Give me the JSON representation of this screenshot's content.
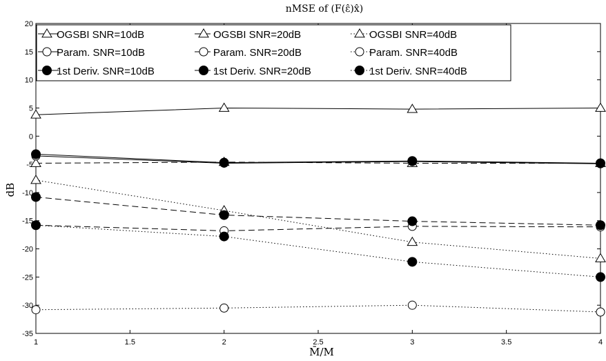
{
  "chart_data": {
    "type": "line",
    "title": "nMSE of (F(ε̂)x̂)",
    "xlabel": "M̄/M",
    "ylabel": "dB",
    "x": [
      1,
      2,
      3,
      4
    ],
    "xlim": [
      1,
      4
    ],
    "ylim": [
      -35,
      20
    ],
    "xticks": [
      "1",
      "1.5",
      "2",
      "2.5",
      "3",
      "3.5",
      "4"
    ],
    "yticks": [
      "20",
      "15",
      "10",
      "5",
      "0",
      "-5",
      "-10",
      "-15",
      "-20",
      "-25",
      "-30",
      "-35"
    ],
    "grid": false,
    "legend_position": "top-left",
    "series": [
      {
        "name": "OGSBI SNR=10dB",
        "marker": "triangle",
        "line": "solid",
        "values": [
          3.8,
          5.0,
          4.8,
          5.0
        ]
      },
      {
        "name": "OGSBI SNR=20dB",
        "marker": "triangle",
        "line": "dashed",
        "values": [
          -4.8,
          -4.6,
          -4.8,
          -4.8
        ]
      },
      {
        "name": "OGSBI SNR=40dB",
        "marker": "triangle",
        "line": "dotted",
        "values": [
          -7.8,
          -13.2,
          -18.8,
          -21.7
        ]
      },
      {
        "name": "Param. SNR=10dB",
        "marker": "circle-open",
        "line": "solid",
        "values": [
          -3.5,
          -4.8,
          -4.5,
          -4.9
        ]
      },
      {
        "name": "Param. SNR=20dB",
        "marker": "circle-open",
        "line": "dashed",
        "values": [
          -15.8,
          -16.8,
          -16.0,
          -16.1
        ]
      },
      {
        "name": "Param. SNR=40dB",
        "marker": "circle-open",
        "line": "dotted",
        "values": [
          -30.8,
          -30.5,
          -30.0,
          -31.2
        ]
      },
      {
        "name": "1st Deriv. SNR=10dB",
        "marker": "circle-filled",
        "line": "solid",
        "values": [
          -3.2,
          -4.7,
          -4.4,
          -4.8
        ]
      },
      {
        "name": "1st Deriv. SNR=20dB",
        "marker": "circle-filled",
        "line": "dashed",
        "values": [
          -10.8,
          -14.0,
          -15.1,
          -15.8
        ]
      },
      {
        "name": "1st Deriv. SNR=40dB",
        "marker": "circle-filled",
        "line": "dotted",
        "values": [
          -15.8,
          -17.8,
          -22.3,
          -25.0
        ]
      }
    ]
  }
}
